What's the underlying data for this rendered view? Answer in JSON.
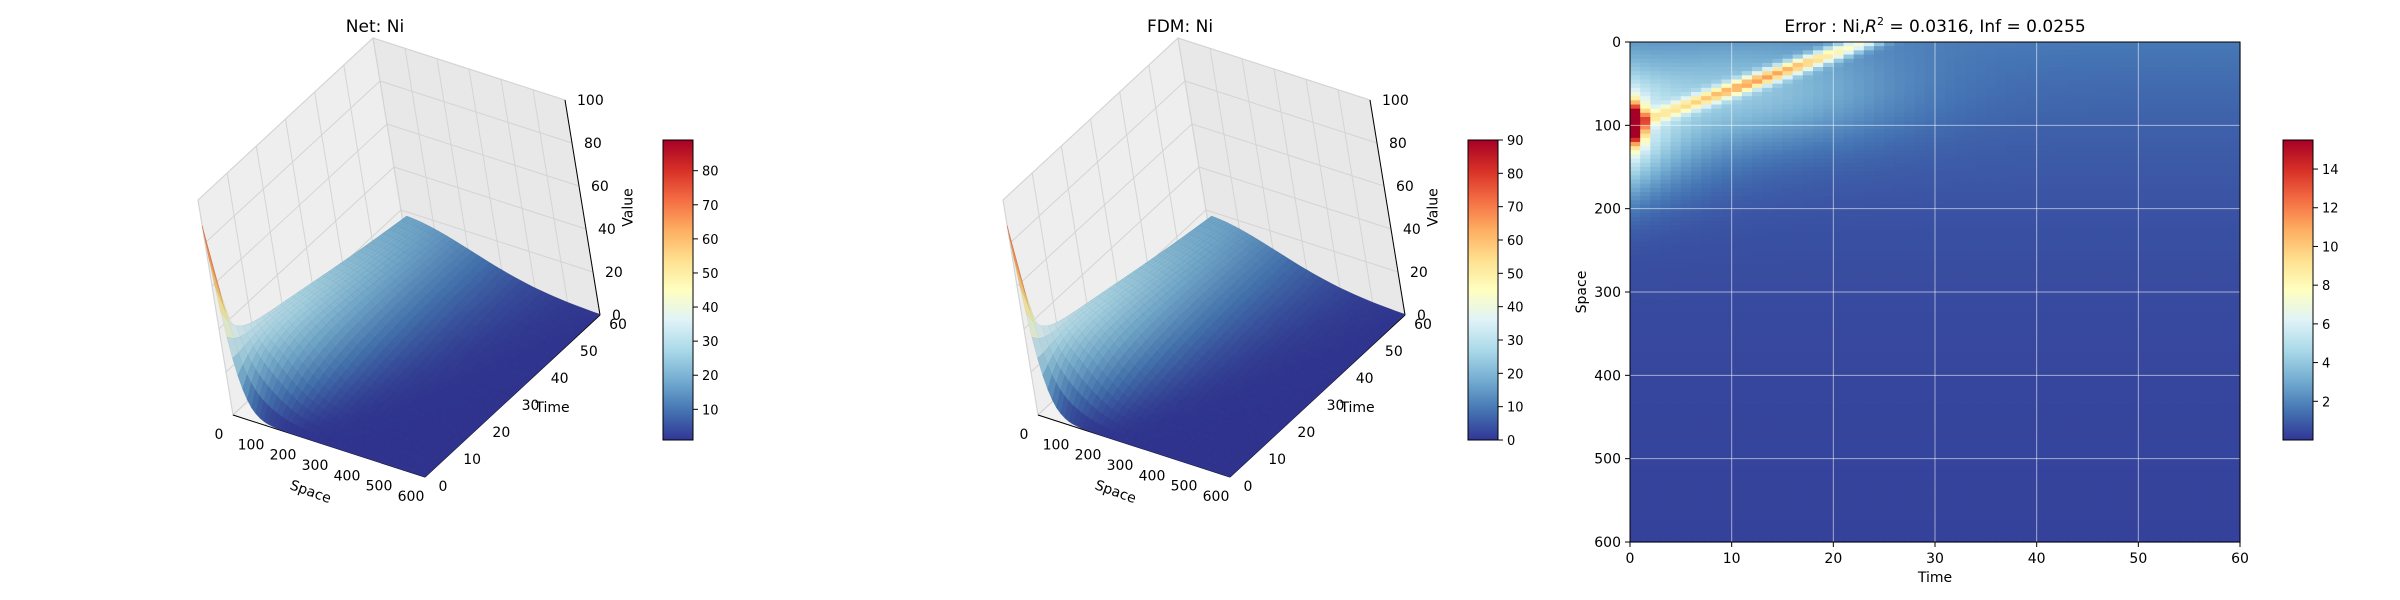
{
  "chart_data": [
    {
      "type": "surface",
      "title": "Net: Ni",
      "xlabel": "Space",
      "ylabel": "Time",
      "zlabel": "Value",
      "x_ticks": [
        0,
        100,
        200,
        300,
        400,
        500,
        600
      ],
      "y_ticks": [
        0,
        10,
        20,
        30,
        40,
        50,
        60
      ],
      "z_ticks": [
        0,
        20,
        40,
        60,
        80,
        100
      ],
      "xlim": [
        0,
        600
      ],
      "ylim": [
        0,
        60
      ],
      "zlim": [
        0,
        100
      ],
      "colormap": "RdYlBu_r",
      "colorbar": {
        "ticks": [
          10,
          20,
          30,
          40,
          50,
          60,
          70,
          80
        ],
        "range": [
          1,
          89
        ],
        "label": "Value"
      },
      "surface_profile": {
        "description_values_at_time_0": {
          "x": [
            0,
            20,
            60,
            100,
            150,
            200,
            300,
            600
          ],
          "z": [
            88,
            88,
            15,
            6,
            3,
            1,
            0.5,
            0
          ]
        },
        "description_values_at_time_20": {
          "x": [
            0,
            50,
            100,
            200,
            300,
            600
          ],
          "z": [
            40,
            38,
            30,
            15,
            6,
            0
          ]
        },
        "description_values_at_time_60": {
          "x": [
            0,
            100,
            200,
            300,
            600
          ],
          "z": [
            20,
            18,
            10,
            4,
            0
          ]
        }
      }
    },
    {
      "type": "surface",
      "title": "FDM: Ni",
      "xlabel": "Space",
      "ylabel": "Time",
      "zlabel": "Value",
      "x_ticks": [
        0,
        100,
        200,
        300,
        400,
        500,
        600
      ],
      "y_ticks": [
        0,
        10,
        20,
        30,
        40,
        50,
        60
      ],
      "z_ticks": [
        0,
        20,
        40,
        60,
        80,
        100
      ],
      "xlim": [
        0,
        600
      ],
      "ylim": [
        0,
        60
      ],
      "zlim": [
        0,
        100
      ],
      "colormap": "RdYlBu_r",
      "colorbar": {
        "ticks": [
          0,
          10,
          20,
          30,
          40,
          50,
          60,
          70,
          80,
          90
        ],
        "range": [
          0,
          90
        ],
        "label": ""
      },
      "surface_profile": {
        "description_values_at_time_0": {
          "x": [
            0,
            20,
            60,
            100,
            150,
            200,
            300,
            600
          ],
          "z": [
            90,
            90,
            15,
            6,
            3,
            1,
            0.5,
            0
          ]
        },
        "description_values_at_time_20": {
          "x": [
            0,
            50,
            100,
            200,
            300,
            600
          ],
          "z": [
            40,
            38,
            30,
            15,
            6,
            0
          ]
        },
        "description_values_at_time_60": {
          "x": [
            0,
            100,
            200,
            300,
            600
          ],
          "z": [
            20,
            18,
            10,
            4,
            0
          ]
        }
      }
    },
    {
      "type": "heatmap",
      "title_prefix": "Error : Ni,",
      "title_r": "R",
      "title_sup": "2",
      "title_suffix": " = 0.0316, Inf = 0.0255",
      "xlabel": "Time",
      "ylabel": "Space",
      "x_ticks": [
        0,
        10,
        20,
        30,
        40,
        50,
        60
      ],
      "y_ticks": [
        0,
        100,
        200,
        300,
        400,
        500,
        600
      ],
      "xlim": [
        0,
        60
      ],
      "ylim": [
        600,
        0
      ],
      "grid": true,
      "colormap": "RdYlBu_r",
      "colorbar": {
        "ticks": [
          2,
          4,
          6,
          8,
          10,
          12,
          14
        ],
        "range": [
          0,
          15.5
        ]
      },
      "hotspots": [
        {
          "time": 0.7,
          "space": 100,
          "value": 15.5,
          "note": "peak error near time 0"
        },
        {
          "time": 20,
          "space": 0,
          "value": 8,
          "note": "error ridge along top edge"
        }
      ]
    }
  ]
}
